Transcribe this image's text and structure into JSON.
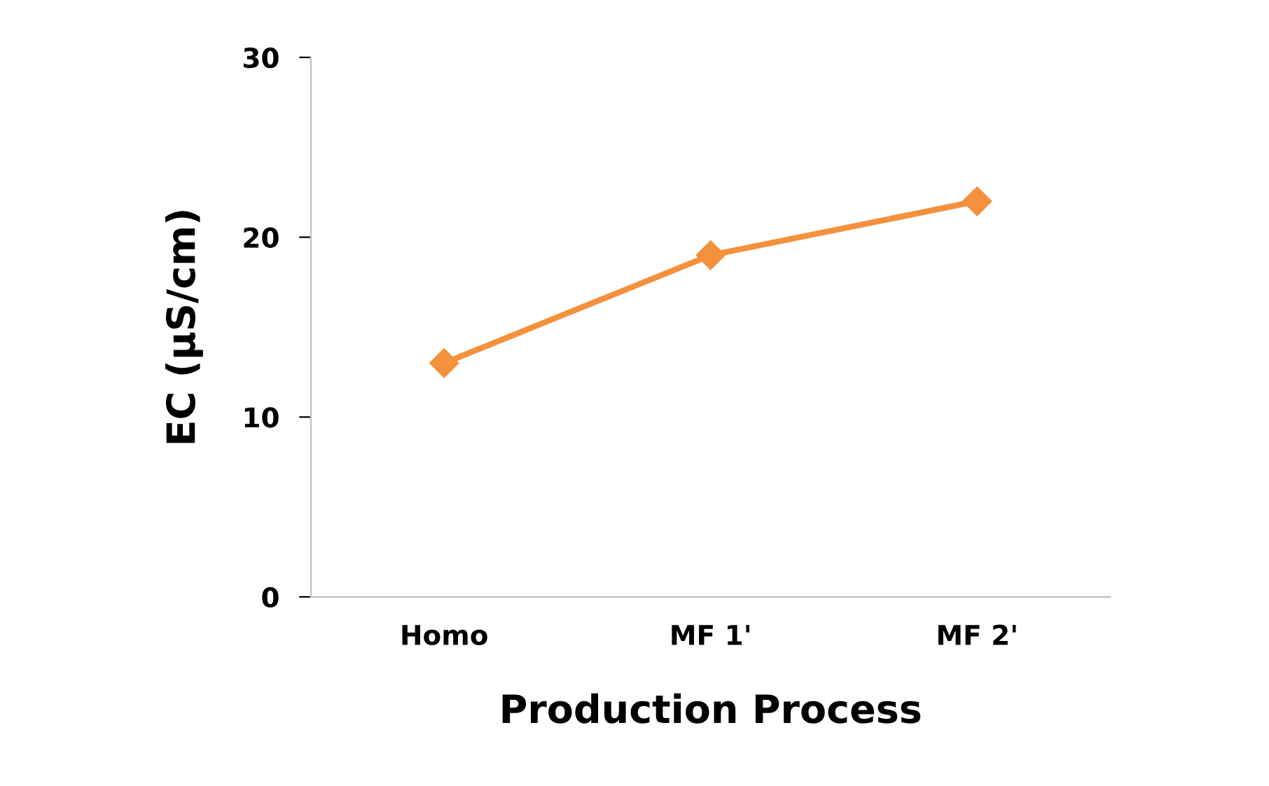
{
  "chart_data": {
    "type": "line",
    "xlabel": "Production Process",
    "ylabel": "EC (µS/cm)",
    "categories": [
      "Homo",
      "MF 1'",
      "MF 2'"
    ],
    "series": [
      {
        "color": "#f4913d",
        "values": [
          13,
          19,
          22
        ]
      }
    ],
    "ylim": [
      0,
      30
    ],
    "yticks": [
      0,
      10,
      20,
      30
    ],
    "grid": false,
    "legend": false,
    "marker": "diamond",
    "line_style": "solid"
  }
}
